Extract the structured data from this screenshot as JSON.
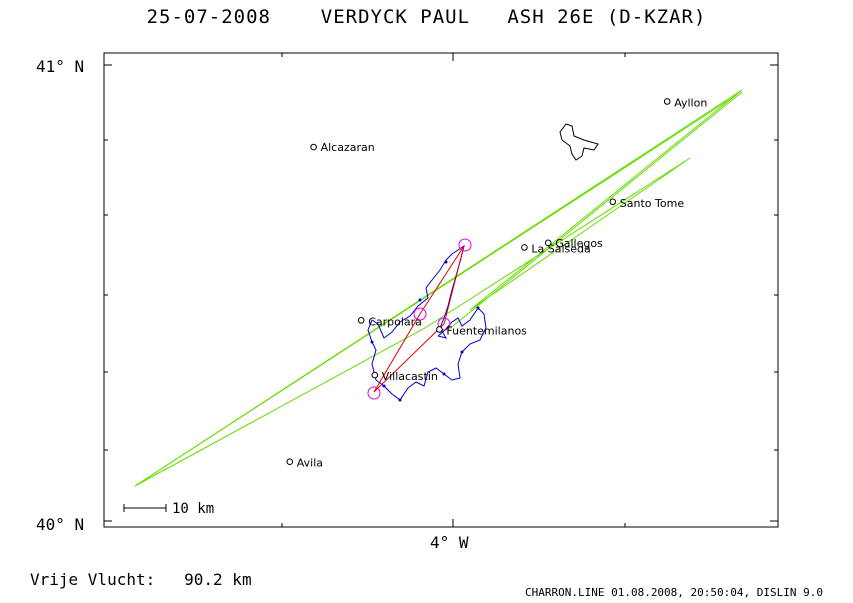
{
  "header": {
    "date": "25-07-2008",
    "pilot": "VERDYCK PAUL",
    "glider": "ASH 26E (D-KZAR)"
  },
  "axes": {
    "lat_top": "41° N",
    "lat_bottom": "40° N",
    "lon_center": "4° W"
  },
  "scale_bar": {
    "label": "10 km"
  },
  "towns": [
    {
      "name": "Alcazaran",
      "lon": -4.41,
      "lat": 40.82
    },
    {
      "name": "Ayllon",
      "lon": -3.37,
      "lat": 40.92
    },
    {
      "name": "Santo Tome",
      "lon": -3.53,
      "lat": 40.7
    },
    {
      "name": "Gallegos",
      "lon": -3.72,
      "lat": 40.61
    },
    {
      "name": "La Salseda",
      "lon": -3.79,
      "lat": 40.6
    },
    {
      "name": "Carpolara",
      "lon": -4.27,
      "lat": 40.44
    },
    {
      "name": "Fuentemilanos",
      "lon": -4.04,
      "lat": 40.42
    },
    {
      "name": "Villacastin",
      "lon": -4.23,
      "lat": 40.32
    },
    {
      "name": "Avila",
      "lon": -4.48,
      "lat": 40.13
    }
  ],
  "task_points": [
    {
      "lon": -4.0,
      "lat": 40.58
    },
    {
      "lon": -4.09,
      "lat": 40.48
    },
    {
      "lon": -4.19,
      "lat": 40.3
    },
    {
      "lon": -4.02,
      "lat": 40.44
    }
  ],
  "footer": {
    "distance_label": "Vrije Vlucht:",
    "distance_value": "90.2 km",
    "info": "CHARRON.LINE 01.08.2008, 20:50:04, DISLIN 9.0"
  },
  "colors": {
    "track": "#0000c8",
    "task": "#e00000",
    "airspace": "#66dd00",
    "turnpoint": "#e000e0"
  }
}
